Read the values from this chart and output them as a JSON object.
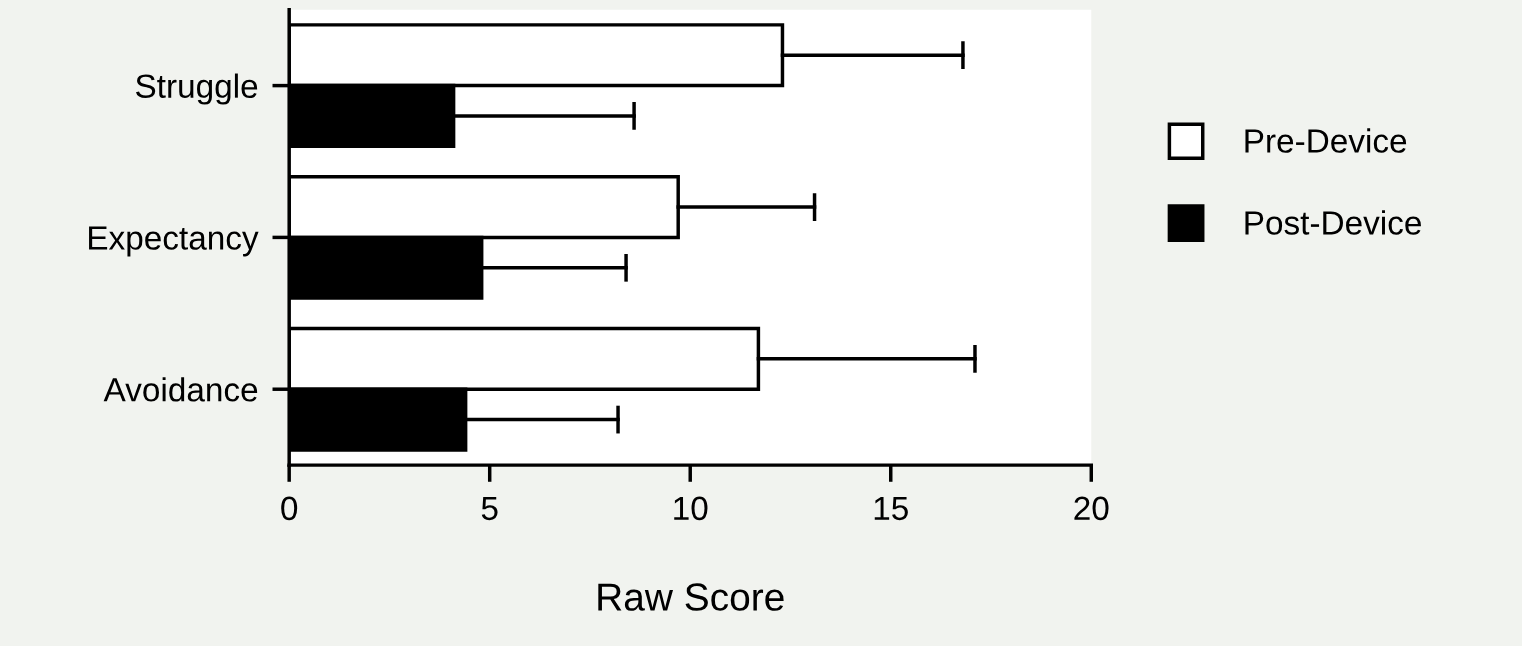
{
  "chart_data": {
    "type": "bar",
    "orientation": "horizontal",
    "xlabel": "Raw Score",
    "categories": [
      "Struggle",
      "Expectancy",
      "Avoidance"
    ],
    "series": [
      {
        "name": "Pre-Device",
        "color": "#ffffff",
        "values": [
          12.3,
          9.7,
          11.7
        ],
        "errors": [
          [
            12.3,
            16.8
          ],
          [
            9.7,
            13.1
          ],
          [
            11.7,
            17.1
          ]
        ]
      },
      {
        "name": "Post-Device",
        "color": "#000000",
        "values": [
          4.1,
          4.8,
          4.4
        ],
        "errors": [
          [
            4.1,
            8.6
          ],
          [
            4.8,
            8.4
          ],
          [
            4.4,
            8.2
          ]
        ]
      }
    ],
    "xlim": [
      0,
      20
    ],
    "xticks": [
      0,
      5,
      10,
      15,
      20
    ],
    "grid": false,
    "legend": "right"
  }
}
